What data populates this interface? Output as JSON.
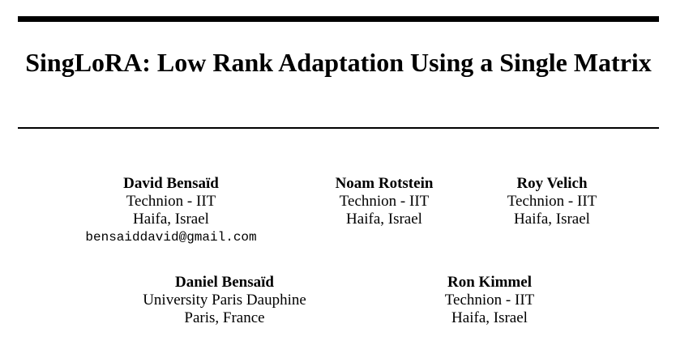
{
  "paper": {
    "title": "SingLoRA: Low Rank Adaptation Using a Single Matrix"
  },
  "authors": [
    {
      "name": "David Bensaïd",
      "affiliation": "Technion - IIT",
      "location": "Haifa, Israel",
      "email": "bensaiddavid@gmail.com"
    },
    {
      "name": "Noam Rotstein",
      "affiliation": "Technion - IIT",
      "location": "Haifa, Israel"
    },
    {
      "name": "Roy Velich",
      "affiliation": "Technion - IIT",
      "location": "Haifa, Israel"
    },
    {
      "name": "Daniel Bensaïd",
      "affiliation": "University Paris Dauphine",
      "location": "Paris, France"
    },
    {
      "name": "Ron Kimmel",
      "affiliation": "Technion - IIT",
      "location": "Haifa, Israel"
    }
  ]
}
